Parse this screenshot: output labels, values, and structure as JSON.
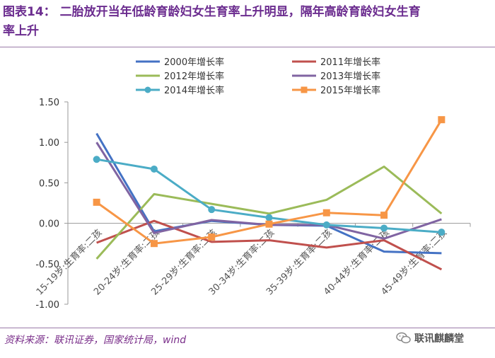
{
  "header": {
    "title_line1": "图表14：  二胎放开当年低龄育龄妇女生育率上升明显，隔年高龄育龄妇女生育",
    "title_line2": "率上升"
  },
  "footer": {
    "source": "资料来源：联讯证券，国家统计局，wind",
    "brand": "联讯麒麟堂"
  },
  "chart_data": {
    "type": "line",
    "categories": [
      "15-19岁:生育率:二孩",
      "20-24岁:生育率:二孩",
      "25-29岁:生育率:二孩",
      "30-34岁:生育率:二孩",
      "35-39岁:生育率:二孩",
      "40-44岁:生育率:二孩",
      "45-49岁:生育率:二孩"
    ],
    "ylim": [
      -1.0,
      1.5
    ],
    "yticks": [
      "1.50",
      "1.00",
      "0.50",
      "0.00",
      "-0.50",
      "-1.00"
    ],
    "ytick_values": [
      1.5,
      1.0,
      0.5,
      0.0,
      -0.5,
      -1.0
    ],
    "series": [
      {
        "name": "2000年增长率",
        "color": "#4472c4",
        "marker": "none",
        "values": [
          1.11,
          -0.1,
          0.03,
          -0.02,
          -0.03,
          -0.35,
          -0.37
        ]
      },
      {
        "name": "2011年增长率",
        "color": "#c0504d",
        "marker": "none",
        "values": [
          -0.24,
          0.03,
          -0.23,
          -0.21,
          -0.3,
          -0.21,
          -0.57
        ]
      },
      {
        "name": "2012年增长率",
        "color": "#9bbb59",
        "marker": "none",
        "values": [
          -0.44,
          0.36,
          0.24,
          0.12,
          0.29,
          0.7,
          0.12
        ]
      },
      {
        "name": "2013年增长率",
        "color": "#8064a2",
        "marker": "none",
        "values": [
          1.0,
          -0.12,
          0.04,
          -0.02,
          -0.02,
          -0.19,
          0.05
        ]
      },
      {
        "name": "2014年增长率",
        "color": "#4bacc6",
        "marker": "circle",
        "values": [
          0.79,
          0.67,
          0.17,
          0.07,
          -0.02,
          -0.06,
          -0.11
        ]
      },
      {
        "name": "2015年增长率",
        "color": "#f79646",
        "marker": "square",
        "values": [
          0.26,
          -0.25,
          -0.17,
          -0.01,
          0.13,
          0.1,
          1.28
        ]
      }
    ],
    "legend_position": "top"
  }
}
